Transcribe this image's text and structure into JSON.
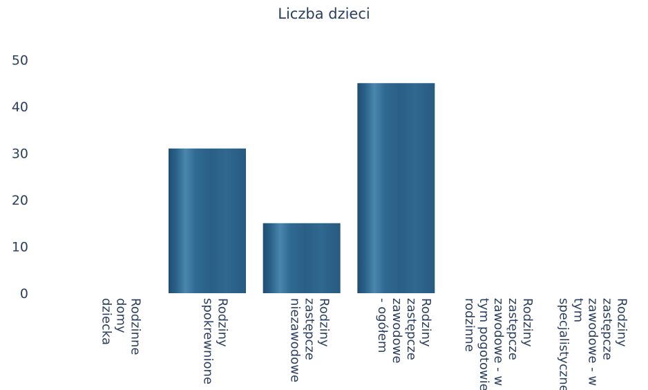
{
  "chart_data": {
    "type": "bar",
    "title": "Liczba dzieci",
    "xlabel": "",
    "ylabel": "",
    "categories": [
      [
        "Rodzinne",
        "domy",
        "dziecka"
      ],
      [
        "Rodziny",
        "spokrewnione"
      ],
      [
        "Rodziny",
        "zastępcze",
        "niezawodowe"
      ],
      [
        "Rodziny",
        "zastępcze",
        "zawodowe",
        "- ogółem"
      ],
      [
        "Rodziny",
        "zastępcze",
        "zawodowe - w",
        "tym pogotowie",
        "rodzinne"
      ],
      [
        "Rodziny",
        "zastępcze",
        "zawodowe - w",
        "tym",
        "specjalistyczne"
      ]
    ],
    "values": [
      0,
      31,
      15,
      45,
      0,
      0
    ],
    "yticks": [
      0,
      10,
      20,
      30,
      40,
      50
    ],
    "ylim": [
      0,
      53
    ],
    "grid": false,
    "bar_color": "#2d5f85"
  }
}
